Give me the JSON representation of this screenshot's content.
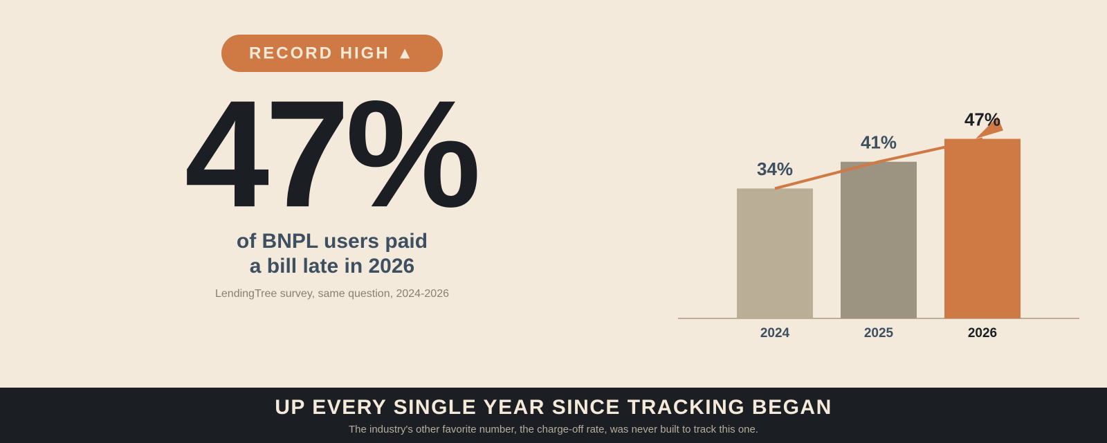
{
  "badge": "RECORD HIGH ▲",
  "headline": "47%",
  "subtitle": [
    "of BNPL users paid",
    "a bill late in 2026"
  ],
  "source": "LendingTree survey, same question, 2024-2026",
  "chart_data": {
    "type": "bar",
    "categories": [
      "2024",
      "2025",
      "2026"
    ],
    "values": [
      34,
      41,
      47
    ],
    "value_labels": [
      "34%",
      "41%",
      "47%"
    ],
    "colors": [
      "#baae96",
      "#9c9380",
      "#cf7a45"
    ],
    "ylim": [
      0,
      50
    ],
    "trend_line": true
  },
  "footer": {
    "title": "UP EVERY SINGLE YEAR SINCE TRACKING BEGAN",
    "note": "The industry's other favorite number, the charge-off rate, was never built to track this one."
  }
}
